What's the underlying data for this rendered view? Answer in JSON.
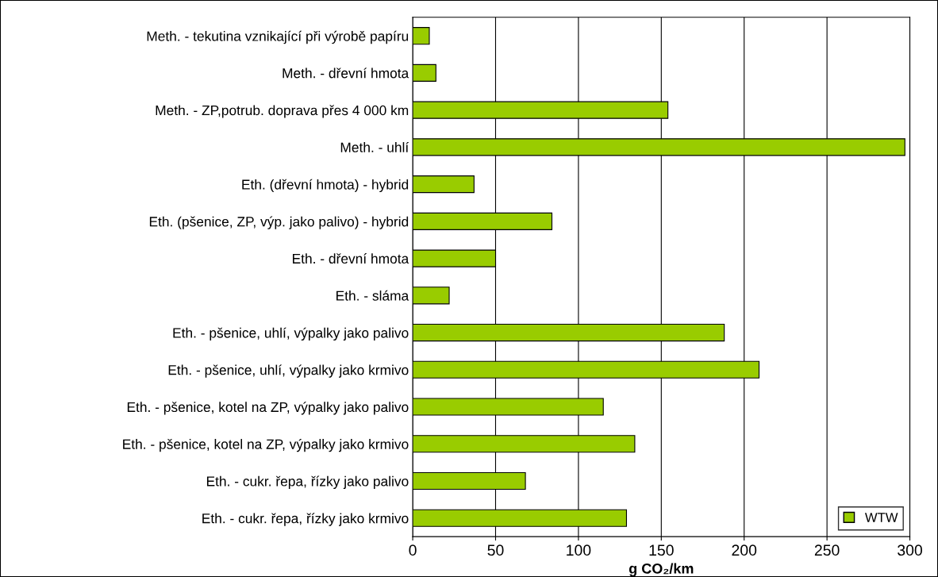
{
  "chart_data": {
    "type": "bar",
    "orientation": "horizontal",
    "xlabel": "g CO₂/km",
    "categories": [
      "Meth. - tekutina vznikající při výrobě papíru",
      "Meth. - dřevní hmota",
      "Meth. - ZP,potrub. doprava přes 4 000 km",
      "Meth. - uhlí",
      "Eth. (dřevní hmota) - hybrid",
      "Eth. (pšenice, ZP, výp. jako palivo) - hybrid",
      "Eth. - dřevní hmota",
      "Eth. - sláma",
      "Eth. - pšenice, uhlí, výpalky jako palivo",
      "Eth. - pšenice, uhlí, výpalky jako krmivo",
      "Eth. - pšenice, kotel na ZP, výpalky jako palivo",
      "Eth. - pšenice, kotel na ZP, výpalky jako krmivo",
      "Eth. - cukr. řepa, řízky jako palivo",
      "Eth. - cukr. řepa, řízky jako krmivo"
    ],
    "series": [
      {
        "name": "WTW",
        "color": "#99cc00",
        "values": [
          10,
          14,
          154,
          297,
          37,
          84,
          50,
          22,
          188,
          209,
          115,
          134,
          68,
          129
        ]
      }
    ],
    "xlim": [
      0,
      300
    ],
    "xticks": [
      0,
      50,
      100,
      150,
      200,
      250,
      300
    ],
    "grid": "x",
    "legend": "bottom right"
  }
}
